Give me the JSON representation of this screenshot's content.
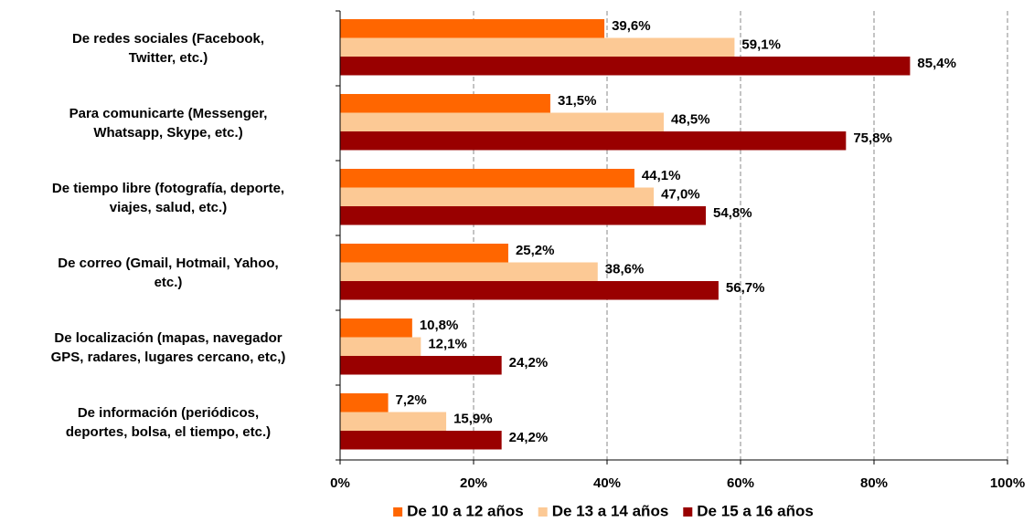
{
  "chart_data": {
    "type": "barh",
    "categories": [
      "De redes sociales (Facebook,\nTwitter, etc.)",
      "Para comunicarte (Messenger,\nWhatsapp, Skype, etc.)",
      "De tiempo libre (fotografía, deporte,\nviajes, salud, etc.)",
      "De correo (Gmail, Hotmail, Yahoo,\netc.)",
      "De localización (mapas, navegador\nGPS, radares, lugares cercano, etc,)",
      "De información (periódicos,\ndeportes, bolsa, el tiempo, etc.)"
    ],
    "series": [
      {
        "name": "De 10 a 12 años",
        "color": "#ff6600",
        "values": [
          39.6,
          31.5,
          44.1,
          25.2,
          10.8,
          7.2
        ],
        "value_labels": [
          "39,6%",
          "31,5%",
          "44,1%",
          "25,2%",
          "10,8%",
          "7,2%"
        ]
      },
      {
        "name": "De 13 a 14 años",
        "color": "#fcc995",
        "values": [
          59.1,
          48.5,
          47.0,
          38.6,
          12.1,
          15.9
        ],
        "value_labels": [
          "59,1%",
          "48,5%",
          "47,0%",
          "38,6%",
          "12,1%",
          "15,9%"
        ]
      },
      {
        "name": "De 15 a 16 años",
        "color": "#990000",
        "values": [
          85.4,
          75.8,
          54.8,
          56.7,
          24.2,
          24.2
        ],
        "value_labels": [
          "85,4%",
          "75,8%",
          "54,8%",
          "56,7%",
          "24,2%",
          "24,2%"
        ]
      }
    ],
    "xlim": [
      0,
      100
    ],
    "xticks": [
      {
        "value": 0,
        "label": "0%"
      },
      {
        "value": 20,
        "label": "20%"
      },
      {
        "value": 40,
        "label": "40%"
      },
      {
        "value": 60,
        "label": "60%"
      },
      {
        "value": 80,
        "label": "80%"
      },
      {
        "value": 100,
        "label": "100%"
      }
    ],
    "grid": true,
    "legend": "bottom"
  }
}
